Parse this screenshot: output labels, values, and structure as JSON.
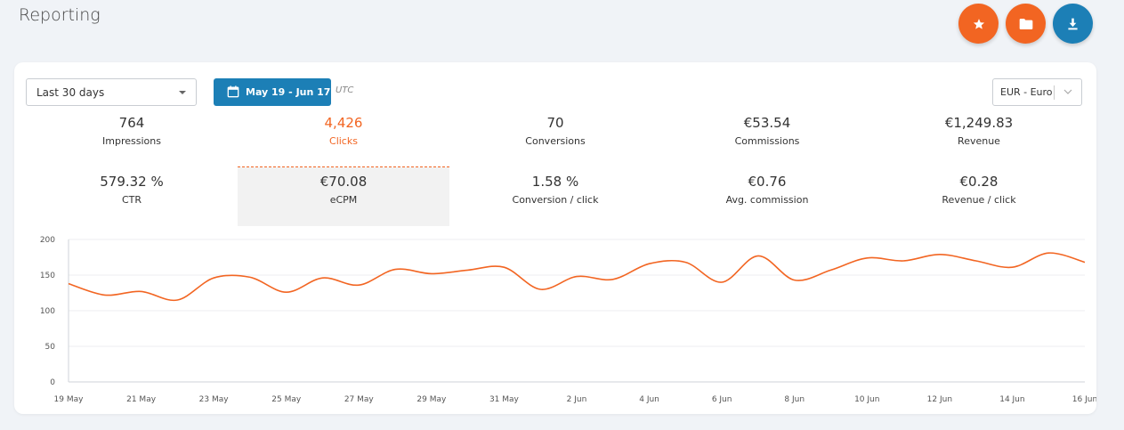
{
  "page": {
    "title": "Reporting"
  },
  "toolbar": {
    "favorite_icon": "star-icon",
    "folder_icon": "folder-icon",
    "download_icon": "download-icon",
    "colors": {
      "orange": "#f26522",
      "blue": "#1c7fb6"
    }
  },
  "filters": {
    "period": "Last 30 days",
    "date_range": "May 19 - Jun 17",
    "timezone": "UTC",
    "currency": "EUR - Euro"
  },
  "metrics": [
    {
      "value": "764",
      "label": "Impressions"
    },
    {
      "value": "4,426",
      "label": "Clicks"
    },
    {
      "value": "70",
      "label": "Conversions"
    },
    {
      "value": "€53.54",
      "label": "Commissions"
    },
    {
      "value": "€1,249.83",
      "label": "Revenue"
    },
    {
      "value": "579.32 %",
      "label": "CTR"
    },
    {
      "value": "€70.08",
      "label": "eCPM"
    },
    {
      "value": "1.58 %",
      "label": "Conversion / click"
    },
    {
      "value": "€0.76",
      "label": "Avg. commission"
    },
    {
      "value": "€0.28",
      "label": "Revenue / click"
    }
  ],
  "chart_data": {
    "type": "line",
    "x": [
      "19 May",
      "20 May",
      "21 May",
      "22 May",
      "23 May",
      "24 May",
      "25 May",
      "26 May",
      "27 May",
      "28 May",
      "29 May",
      "30 May",
      "31 May",
      "1 Jun",
      "2 Jun",
      "3 Jun",
      "4 Jun",
      "5 Jun",
      "6 Jun",
      "7 Jun",
      "8 Jun",
      "9 Jun",
      "10 Jun",
      "11 Jun",
      "12 Jun",
      "13 Jun",
      "14 Jun",
      "15 Jun",
      "16 Jun"
    ],
    "x_tick_labels": [
      "19 May",
      "21 May",
      "23 May",
      "25 May",
      "27 May",
      "29 May",
      "31 May",
      "2 Jun",
      "4 Jun",
      "6 Jun",
      "8 Jun",
      "10 Jun",
      "12 Jun",
      "14 Jun",
      "16 Jun"
    ],
    "series": [
      {
        "values": [
          138,
          122,
          127,
          115,
          146,
          147,
          126,
          146,
          136,
          158,
          152,
          157,
          161,
          130,
          148,
          144,
          166,
          168,
          140,
          177,
          143,
          157,
          174,
          170,
          179,
          170,
          161,
          181,
          168
        ],
        "color": "#f26522"
      }
    ],
    "ylim": [
      0,
      200
    ],
    "y_ticks": [
      0,
      50,
      100,
      150,
      200
    ],
    "grid": true
  }
}
